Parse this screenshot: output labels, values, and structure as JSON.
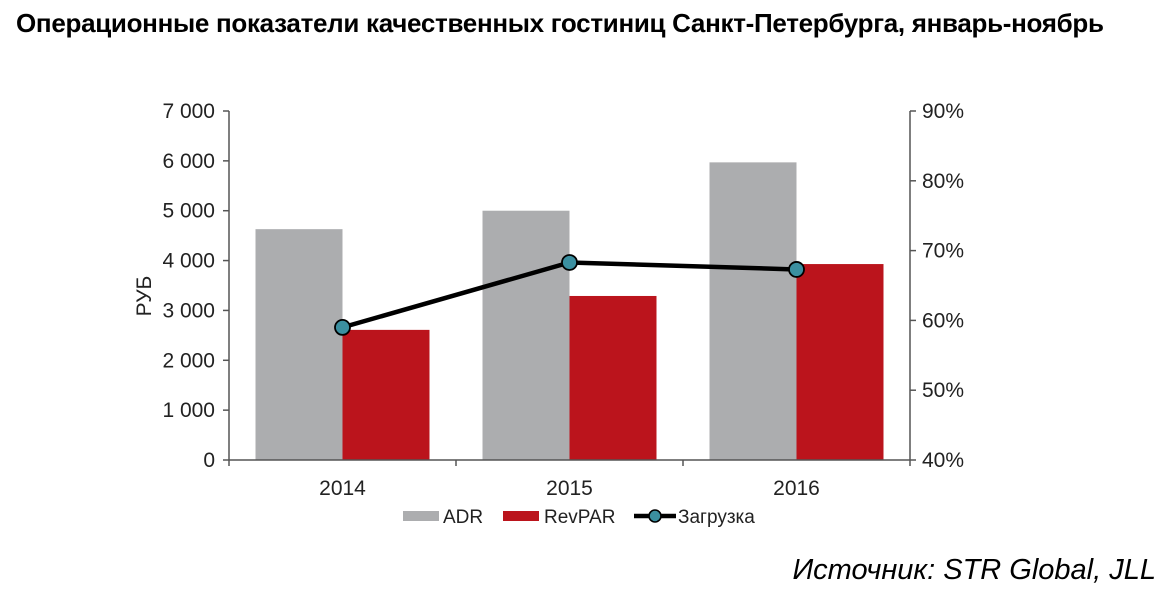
{
  "title": "Операционные показатели качественных гостиниц Санкт-Петербурга, январь-ноябрь",
  "source": "Источник: STR Global, JLL",
  "colors": {
    "adr": "#acadaf",
    "revpar": "#bb141c",
    "occupancy_line": "#000000",
    "occupancy_marker": "#3b8fa0"
  },
  "chart_data": {
    "type": "bar",
    "categories": [
      "2014",
      "2015",
      "2016"
    ],
    "series": [
      {
        "name": "ADR",
        "type": "bar",
        "axis": "left",
        "values": [
          4630,
          5000,
          5970
        ]
      },
      {
        "name": "RevPAR",
        "type": "bar",
        "axis": "left",
        "values": [
          2610,
          3290,
          3930
        ]
      },
      {
        "name": "Загрузка",
        "type": "line",
        "axis": "right",
        "values": [
          59,
          68.3,
          67.3
        ]
      }
    ],
    "ylabel": "РУБ",
    "ylim": [
      0,
      7000
    ],
    "yticks": [
      "0",
      "1 000",
      "2 000",
      "3 000",
      "4 000",
      "5 000",
      "6 000",
      "7 000"
    ],
    "y2lim": [
      40,
      90
    ],
    "y2ticks": [
      "40%",
      "50%",
      "60%",
      "70%",
      "80%",
      "90%"
    ],
    "grid": false,
    "legend": "bottom"
  }
}
